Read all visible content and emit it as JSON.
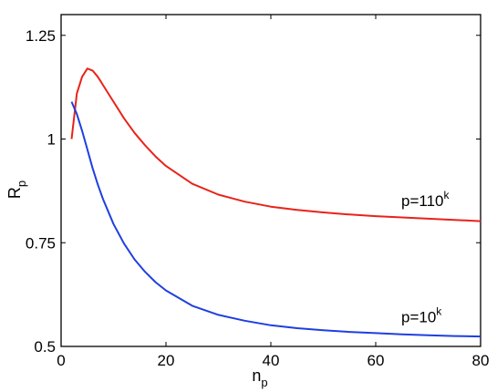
{
  "chart_data": {
    "type": "line",
    "xlabel": "n",
    "xlabel_sub": "p",
    "ylabel": "R",
    "ylabel_sub": "p",
    "xlim": [
      0,
      80
    ],
    "ylim": [
      0.5,
      1.3
    ],
    "x_ticks": [
      0,
      20,
      40,
      60,
      80
    ],
    "x_tick_labels": [
      "0",
      "20",
      "40",
      "60",
      "80"
    ],
    "y_ticks": [
      0.5,
      0.75,
      1,
      1.25
    ],
    "y_tick_labels": [
      "0.5",
      "0.75",
      "1",
      "1.25"
    ],
    "grid": false,
    "series": [
      {
        "color": "#e8231a",
        "label_base": "p=110",
        "label_sup": "k",
        "x": [
          2,
          3,
          4,
          5,
          6,
          7,
          8,
          10,
          12,
          14,
          16,
          18,
          20,
          25,
          30,
          35,
          40,
          45,
          50,
          55,
          60,
          65,
          70,
          75,
          80
        ],
        "y": [
          1.0,
          1.11,
          1.15,
          1.17,
          1.165,
          1.15,
          1.13,
          1.09,
          1.05,
          1.015,
          0.985,
          0.958,
          0.935,
          0.892,
          0.866,
          0.849,
          0.837,
          0.829,
          0.823,
          0.818,
          0.814,
          0.811,
          0.808,
          0.805,
          0.802
        ]
      },
      {
        "color": "#1f3fe0",
        "label_base": "p=10",
        "label_sup": "k",
        "x": [
          2,
          3,
          4,
          5,
          6,
          7,
          8,
          10,
          12,
          14,
          16,
          18,
          20,
          25,
          30,
          35,
          40,
          45,
          50,
          55,
          60,
          65,
          70,
          75,
          80
        ],
        "y": [
          1.09,
          1.06,
          1.02,
          0.975,
          0.93,
          0.89,
          0.855,
          0.795,
          0.748,
          0.71,
          0.68,
          0.655,
          0.635,
          0.598,
          0.576,
          0.562,
          0.551,
          0.544,
          0.539,
          0.535,
          0.532,
          0.529,
          0.527,
          0.525,
          0.524
        ]
      }
    ]
  }
}
